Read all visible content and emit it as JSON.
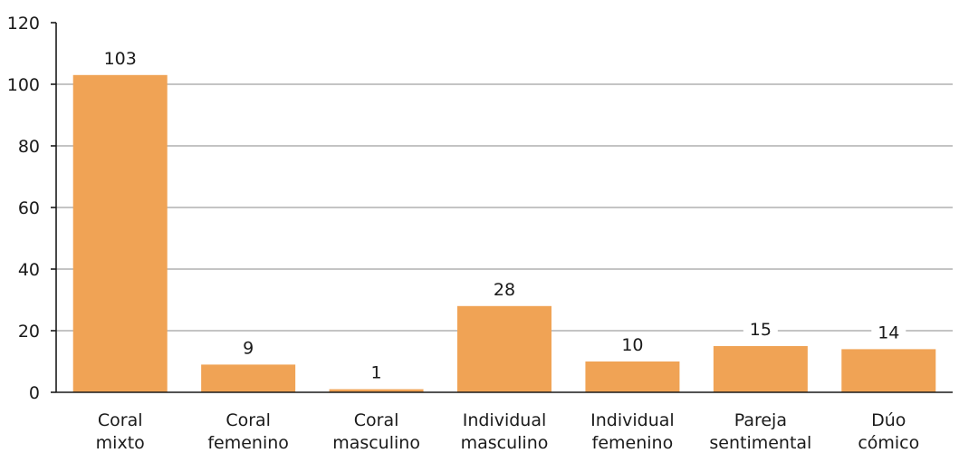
{
  "chart_data": {
    "type": "bar",
    "categories": [
      [
        "Coral",
        "mixto"
      ],
      [
        "Coral",
        "femenino"
      ],
      [
        "Coral",
        "masculino"
      ],
      [
        "Individual",
        "masculino"
      ],
      [
        "Individual",
        "femenino"
      ],
      [
        "Pareja",
        "sentimental"
      ],
      [
        "Dúo",
        "cómico"
      ]
    ],
    "values": [
      103,
      9,
      1,
      28,
      10,
      15,
      14
    ],
    "value_labels": [
      "103",
      "9",
      "1",
      "28",
      "10",
      "15",
      "14"
    ],
    "ylim": [
      0,
      120
    ],
    "yticks": [
      0,
      20,
      40,
      60,
      80,
      100,
      120
    ],
    "ytick_labels": [
      "0",
      "20",
      "40",
      "60",
      "80",
      "100",
      "120"
    ],
    "grid": true,
    "bar_color": "#f0a355",
    "title": "",
    "xlabel": "",
    "ylabel": ""
  }
}
